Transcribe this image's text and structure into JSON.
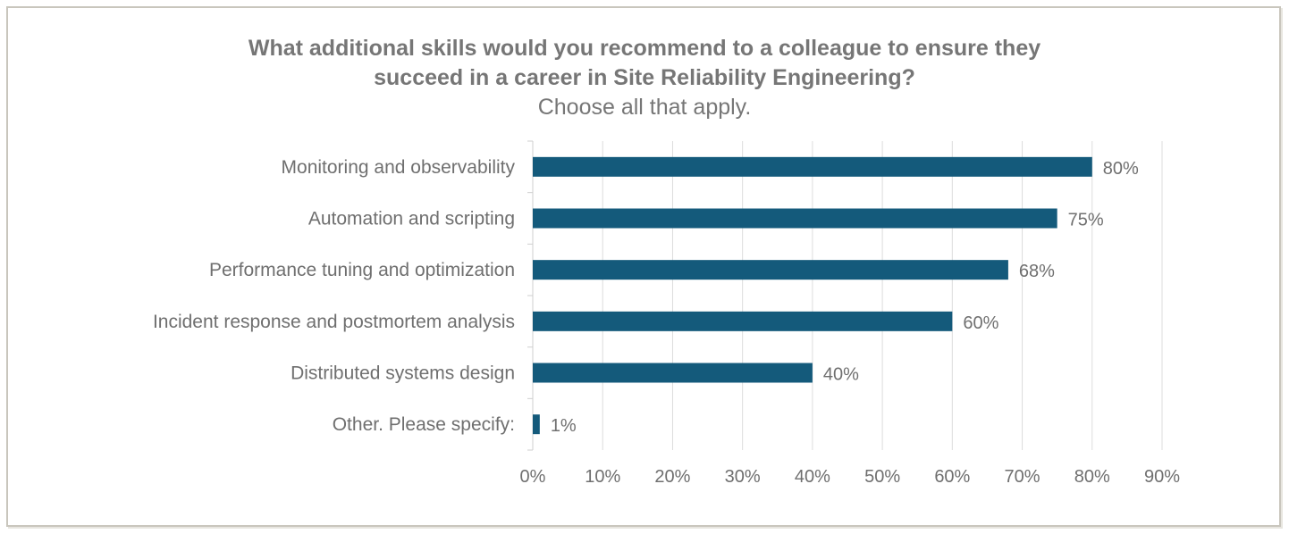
{
  "chart_data": {
    "type": "bar",
    "orientation": "horizontal",
    "title_lines": [
      "What additional skills would you recommend to a colleague to ensure they",
      "succeed in a career in Site Reliability Engineering?"
    ],
    "subtitle": "Choose all that apply.",
    "categories": [
      "Monitoring and observability",
      "Automation and scripting",
      "Performance tuning and optimization",
      "Incident response and postmortem analysis",
      "Distributed systems design",
      "Other. Please specify:"
    ],
    "values": [
      80,
      75,
      68,
      60,
      40,
      1
    ],
    "data_labels": [
      "80%",
      "75%",
      "68%",
      "60%",
      "40%",
      "1%"
    ],
    "x_ticks": [
      0,
      10,
      20,
      30,
      40,
      50,
      60,
      70,
      80,
      90
    ],
    "x_tick_labels": [
      "0%",
      "10%",
      "20%",
      "30%",
      "40%",
      "50%",
      "60%",
      "70%",
      "80%",
      "90%"
    ],
    "xlim": [
      0,
      90
    ],
    "grid": true,
    "colors": {
      "bar": "#145a7b",
      "grid": "#dcdcdc",
      "text": "#6f6f6f"
    }
  }
}
